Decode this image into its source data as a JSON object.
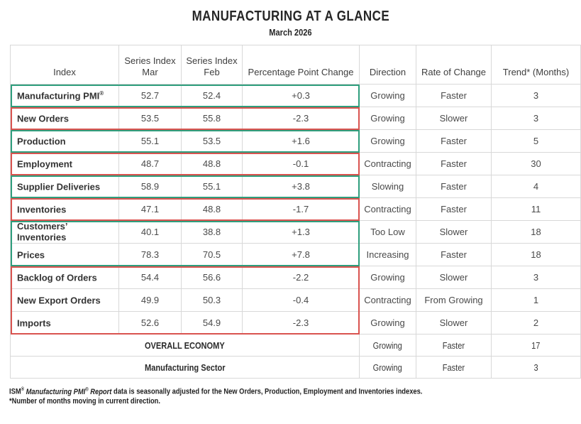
{
  "title": "MANUFACTURING AT A GLANCE",
  "subtitle": "March 2026",
  "colors": {
    "highlight_green": "#2f9e7d",
    "highlight_red": "#d9534f",
    "grid": "#d8d8d8"
  },
  "table": {
    "headers": [
      {
        "line1": "",
        "line2": "Index"
      },
      {
        "line1": "Series Index",
        "line2": "Mar"
      },
      {
        "line1": "Series Index",
        "line2": "Feb"
      },
      {
        "line1": "",
        "line2": "Percentage Point Change"
      },
      {
        "line1": "",
        "line2": "Direction"
      },
      {
        "line1": "",
        "line2": "Rate of Change"
      },
      {
        "line1": "",
        "line2": "Trend* (Months)"
      }
    ],
    "rows": [
      {
        "index": "Manufacturing PMI",
        "sup": "®",
        "mar": "52.7",
        "feb": "52.4",
        "change": "+0.3",
        "direction": "Growing",
        "rate": "Faster",
        "trend": "3",
        "box": "green",
        "boxpos": "single"
      },
      {
        "index": "New Orders",
        "sup": "",
        "mar": "53.5",
        "feb": "55.8",
        "change": "-2.3",
        "direction": "Growing",
        "rate": "Slower",
        "trend": "3",
        "box": "red",
        "boxpos": "single"
      },
      {
        "index": "Production",
        "sup": "",
        "mar": "55.1",
        "feb": "53.5",
        "change": "+1.6",
        "direction": "Growing",
        "rate": "Faster",
        "trend": "5",
        "box": "green",
        "boxpos": "single"
      },
      {
        "index": "Employment",
        "sup": "",
        "mar": "48.7",
        "feb": "48.8",
        "change": "-0.1",
        "direction": "Contracting",
        "rate": "Faster",
        "trend": "30",
        "box": "red",
        "boxpos": "single"
      },
      {
        "index": "Supplier Deliveries",
        "sup": "",
        "mar": "58.9",
        "feb": "55.1",
        "change": "+3.8",
        "direction": "Slowing",
        "rate": "Faster",
        "trend": "4",
        "box": "green",
        "boxpos": "single"
      },
      {
        "index": "Inventories",
        "sup": "",
        "mar": "47.1",
        "feb": "48.8",
        "change": "-1.7",
        "direction": "Contracting",
        "rate": "Faster",
        "trend": "11",
        "box": "red",
        "boxpos": "single"
      },
      {
        "index": "Customers’ Inventories",
        "sup": "",
        "mar": "40.1",
        "feb": "38.8",
        "change": "+1.3",
        "direction": "Too Low",
        "rate": "Slower",
        "trend": "18",
        "box": "green",
        "boxpos": "top"
      },
      {
        "index": "Prices",
        "sup": "",
        "mar": "78.3",
        "feb": "70.5",
        "change": "+7.8",
        "direction": "Increasing",
        "rate": "Faster",
        "trend": "18",
        "box": "green",
        "boxpos": "bottom"
      },
      {
        "index": "Backlog of Orders",
        "sup": "",
        "mar": "54.4",
        "feb": "56.6",
        "change": "-2.2",
        "direction": "Growing",
        "rate": "Slower",
        "trend": "3",
        "box": "red",
        "boxpos": "top"
      },
      {
        "index": "New Export Orders",
        "sup": "",
        "mar": "49.9",
        "feb": "50.3",
        "change": "-0.4",
        "direction": "Contracting",
        "rate": "From Growing",
        "trend": "1",
        "box": "red",
        "boxpos": "middle"
      },
      {
        "index": "Imports",
        "sup": "",
        "mar": "52.6",
        "feb": "54.9",
        "change": "-2.3",
        "direction": "Growing",
        "rate": "Slower",
        "trend": "2",
        "box": "red",
        "boxpos": "bottom"
      }
    ],
    "summary_rows": [
      {
        "label": "OVERALL ECONOMY",
        "direction": "Growing",
        "rate": "Faster",
        "trend": "17"
      },
      {
        "label": "Manufacturing Sector",
        "direction": "Growing",
        "rate": "Faster",
        "trend": "3"
      }
    ]
  },
  "footnote1": {
    "org": "ISM",
    "org_reg": "®",
    "report_italic": " Manufacturing PMI",
    "report_reg": "®",
    "report_word": " Report ",
    "text": "data is seasonally adjusted for the New Orders, Production, Employment and Inventories indexes."
  },
  "footnote2": "*Number of months moving in current direction."
}
